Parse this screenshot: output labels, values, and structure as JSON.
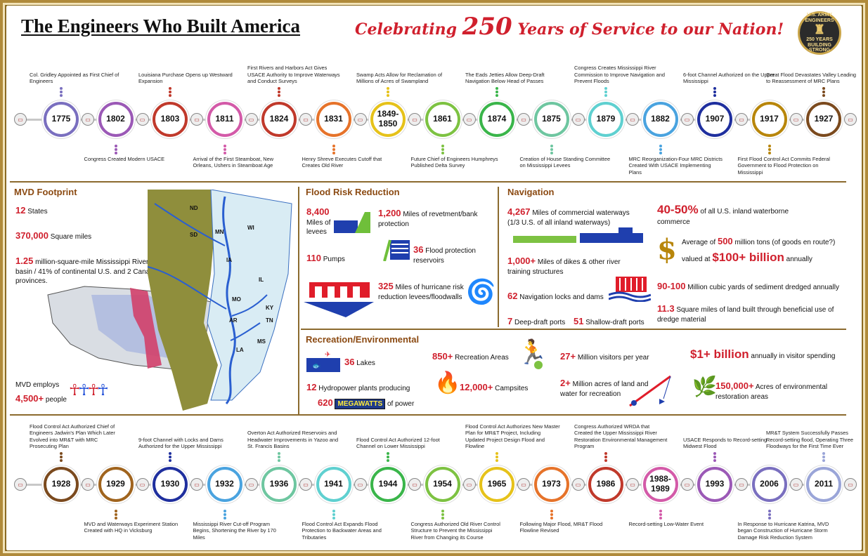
{
  "header": {
    "title": "The Engineers Who Built America",
    "tagline_pre": "Celebrating",
    "tagline_num": "250",
    "tagline_post": "Years of Service to our Nation!",
    "seal_top": "U.S. ARMY ENGINEERS",
    "seal_mid": "250 YEARS",
    "seal_bottom": "BUILDING STRONG"
  },
  "timeline_top": [
    {
      "year": "1775",
      "color": "#7a6fbf",
      "pos": "up",
      "text": "Col. Gridley Appointed as First Chief of Engineers"
    },
    {
      "year": "1802",
      "color": "#9b59b6",
      "pos": "down",
      "text": "Congress Created Modern USACE"
    },
    {
      "year": "1803",
      "color": "#c0392b",
      "pos": "up",
      "text": "Louisiana Purchase Opens up Westward Expansion"
    },
    {
      "year": "1811",
      "color": "#d35aa8",
      "pos": "down",
      "text": "Arrival of the First Steamboat, New Orleans, Ushers in Steamboat Age"
    },
    {
      "year": "1824",
      "color": "#c0392b",
      "pos": "up",
      "text": "First Rivers and Harbors Act Gives USACE Authority to Improve Waterways and Conduct Surveys"
    },
    {
      "year": "1831",
      "color": "#e6732a",
      "pos": "down",
      "text": "Henry Shreve Executes Cutoff that Creates Old River"
    },
    {
      "year": "1849-1850",
      "color": "#e6c21a",
      "pos": "up",
      "text": "Swamp Acts Allow for Reclamation of Millions of Acres of Swampland"
    },
    {
      "year": "1861",
      "color": "#7dc242",
      "pos": "down",
      "text": "Future Chief of Engineers Humphreys Published Delta Survey"
    },
    {
      "year": "1874",
      "color": "#3ab54a",
      "pos": "up",
      "text": "The Eads Jetties Allow Deep-Draft Navigation Below Head of Passes"
    },
    {
      "year": "1875",
      "color": "#6ec6a0",
      "pos": "down",
      "text": "Creation of House Standing Committee on Mississippi Levees"
    },
    {
      "year": "1879",
      "color": "#5fd0d0",
      "pos": "up",
      "text": "Congress Creates Mississippi River Commission to Improve Navigation and Prevent Floods"
    },
    {
      "year": "1882",
      "color": "#4aa3df",
      "pos": "down",
      "text": "MRC Reorganization-Four MRC Districts Created With USACE Implementing Plans"
    },
    {
      "year": "1907",
      "color": "#1f2f9e",
      "pos": "up",
      "text": "6-foot Channel Authorized on the Upper Mississippi"
    },
    {
      "year": "1917",
      "color": "#b8860b",
      "pos": "down",
      "text": "First Flood Control Act Commits Federal Government to Flood Protection on Mississippi"
    },
    {
      "year": "1927",
      "color": "#7b4a1e",
      "pos": "up",
      "text": "Great Flood Devastates Valley Leading to Reassessment of MRC Plans"
    }
  ],
  "timeline_bottom": [
    {
      "year": "1928",
      "color": "#7b4a1e",
      "pos": "up",
      "text": "Flood Control Act Authorized Chief of Engineers Jadwin's Plan Which Later Evolved into MR&T with MRC Prosecuting Plan"
    },
    {
      "year": "1929",
      "color": "#a0641e",
      "pos": "down",
      "text": "MVD and Waterways Experiment Station Created with HQ in Vicksburg"
    },
    {
      "year": "1930",
      "color": "#1f2f9e",
      "pos": "up",
      "text": "9-foot Channel with Locks and Dams Authorized for the Upper Mississippi"
    },
    {
      "year": "1932",
      "color": "#4aa3df",
      "pos": "down",
      "text": "Mississippi River Cut-off Program Begins, Shortening the River by 170 Miles"
    },
    {
      "year": "1936",
      "color": "#6ec6a0",
      "pos": "up",
      "text": "Overton Act Authorized Reservoirs and Headwater Improvements in Yazoo and St. Francis Basins"
    },
    {
      "year": "1941",
      "color": "#5fd0d0",
      "pos": "down",
      "text": "Flood Control Act Expands Flood Protection to Backwater Areas and Tributaries"
    },
    {
      "year": "1944",
      "color": "#3ab54a",
      "pos": "up",
      "text": "Flood Control Act Authorized 12-foot Channel on Lower Mississippi"
    },
    {
      "year": "1954",
      "color": "#7dc242",
      "pos": "down",
      "text": "Congress Authorized Old River Control Structure to Prevent the Mississippi River from Changing its Course"
    },
    {
      "year": "1965",
      "color": "#e6c21a",
      "pos": "up",
      "text": "Flood Control Act Authorizes New Master Plan for MR&T Project, Including Updated Project Design Flood and Flowline"
    },
    {
      "year": "1973",
      "color": "#e6732a",
      "pos": "down",
      "text": "Following Major Flood, MR&T Flood Flowline Revised"
    },
    {
      "year": "1986",
      "color": "#c0392b",
      "pos": "up",
      "text": "Congress Authorized WRDA that Created the Upper Mississippi River Restoration Environmental Management Program"
    },
    {
      "year": "1988-1989",
      "color": "#d35aa8",
      "pos": "down",
      "text": "Record-setting Low-Water Event"
    },
    {
      "year": "1993",
      "color": "#9b59b6",
      "pos": "up",
      "text": "USACE Responds to Record-setting Midwest Flood"
    },
    {
      "year": "2006",
      "color": "#7a6fbf",
      "pos": "down",
      "text": "In Response to Hurricane Katrina, MVD began Construction of Hurricane Storm Damage Risk Reduction System"
    },
    {
      "year": "2011",
      "color": "#9aa5d8",
      "pos": "up",
      "text": "MR&T System Successfully Passes Record-setting flood, Operating Three Floodways for the First Time Ever"
    }
  ],
  "footprint": {
    "title": "MVD Footprint",
    "states_num": "12",
    "states_label": "States",
    "sqmi_num": "370,000",
    "sqmi_label": "Square miles",
    "basin_num": "1.25",
    "basin_label": "million-square-mile Mississippi River drainage basin / 41% of continental U.S. and 2 Canadian provinces.",
    "employs_label": "MVD employs",
    "people_num": "4,500+",
    "people_label": "people",
    "state_labels": [
      "ND",
      "SD",
      "MN",
      "WI",
      "IA",
      "IL",
      "MO",
      "KY",
      "TN",
      "AR",
      "MS",
      "LA"
    ]
  },
  "flood": {
    "title": "Flood Risk Reduction",
    "levees_num": "8,400",
    "levees_label": "Miles of levees",
    "revet_num": "1,200",
    "revet_label": "Miles of revetment/bank protection",
    "pumps_num": "110",
    "pumps_label": "Pumps",
    "reservoirs_num": "36",
    "reservoirs_label": "Flood protection reservoirs",
    "hurricane_num": "325",
    "hurricane_label": "Miles of hurricane risk reduction levees/floodwalls"
  },
  "navigation": {
    "title": "Navigation",
    "waterways_num": "4,267",
    "waterways_label": "Miles of commercial waterways (1/3 U.S. of all inland waterways)",
    "dikes_num": "1,000+",
    "dikes_label": "Miles of dikes & other river training structures",
    "locks_num": "62",
    "locks_label": "Navigation locks and dams",
    "deep_num": "7",
    "deep_label": "Deep-draft ports",
    "shallow_num": "51",
    "shallow_label": "Shallow-draft ports",
    "commerce_num": "40-50%",
    "commerce_label": "of all U.S. inland waterborne commerce",
    "tons_pre": "Average of",
    "tons_num": "500",
    "tons_label": "million tons (of goods en route?)",
    "value_pre": "valued at",
    "value_num": "$100+ billion",
    "value_label": "annually",
    "sediment_num": "90-100",
    "sediment_label": "Million cubic yards of sediment dredged annually",
    "land_num": "11.3",
    "land_label": "Square miles of land built through beneficial use of dredge material"
  },
  "recreation": {
    "title": "Recreation/Environmental",
    "lakes_num": "36",
    "lakes_label": "Lakes",
    "hydro_num": "12",
    "hydro_label": "Hydropower plants producing",
    "mw_num": "620",
    "mw_badge": "MEGAWATTS",
    "mw_label": "of power",
    "areas_num": "850+",
    "areas_label": "Recreation Areas",
    "camp_num": "12,000+",
    "camp_label": "Campsites",
    "visitors_num": "27+",
    "visitors_label": "Million visitors per year",
    "acres_num": "2+",
    "acres_label": "Million acres of land and water for recreation",
    "spend_num": "$1+ billion",
    "spend_label": "annually in visitor spending",
    "restore_num": "150,000+",
    "restore_label": "Acres of environmental restoration areas"
  }
}
